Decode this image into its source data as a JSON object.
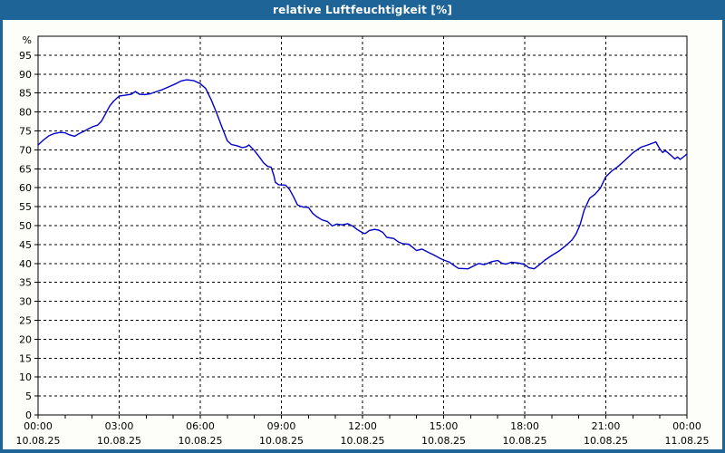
{
  "window": {
    "title": "relative Luftfeuchtigkeit [%]"
  },
  "colors": {
    "titlebar": "#1E6496",
    "content_bg": "#FDFDF9",
    "plot_bg": "#FFFFFF",
    "grid": "#000000",
    "text": "#000000",
    "line": "#0000CC"
  },
  "chart_data": {
    "type": "line",
    "title": "relative Luftfeuchtigkeit [%]",
    "ylabel": "%",
    "unit_label": "%",
    "ylim": [
      0,
      100
    ],
    "yticks": [
      0,
      5,
      10,
      15,
      20,
      25,
      30,
      35,
      40,
      45,
      50,
      55,
      60,
      65,
      70,
      75,
      80,
      85,
      90,
      95
    ],
    "xlim_hours": [
      0,
      24
    ],
    "x_minor_tick_hours": 1,
    "grid": "dashed, horizontal every 5, vertical every 3h",
    "legend_position": "none",
    "xticks": [
      {
        "hour": 0,
        "time": "00:00",
        "date": "10.08.25"
      },
      {
        "hour": 3,
        "time": "03:00",
        "date": "10.08.25"
      },
      {
        "hour": 6,
        "time": "06:00",
        "date": "10.08.25"
      },
      {
        "hour": 9,
        "time": "09:00",
        "date": "10.08.25"
      },
      {
        "hour": 12,
        "time": "12:00",
        "date": "10.08.25"
      },
      {
        "hour": 15,
        "time": "15:00",
        "date": "10.08.25"
      },
      {
        "hour": 18,
        "time": "18:00",
        "date": "10.08.25"
      },
      {
        "hour": 21,
        "time": "21:00",
        "date": "10.08.25"
      },
      {
        "hour": 24,
        "time": "00:00",
        "date": "11.08.25"
      }
    ],
    "series": [
      {
        "name": "relative Luftfeuchtigkeit",
        "unit": "%",
        "points_hour_value": [
          [
            0.0,
            71.3
          ],
          [
            0.2,
            72.6
          ],
          [
            0.4,
            73.7
          ],
          [
            0.6,
            74.3
          ],
          [
            0.8,
            74.6
          ],
          [
            1.0,
            74.5
          ],
          [
            1.15,
            74.0
          ],
          [
            1.35,
            73.6
          ],
          [
            1.5,
            74.2
          ],
          [
            1.7,
            74.9
          ],
          [
            1.9,
            75.7
          ],
          [
            2.05,
            76.2
          ],
          [
            2.2,
            76.5
          ],
          [
            2.35,
            77.6
          ],
          [
            2.5,
            79.6
          ],
          [
            2.65,
            81.6
          ],
          [
            2.8,
            82.9
          ],
          [
            3.0,
            84.2
          ],
          [
            3.2,
            84.4
          ],
          [
            3.45,
            84.7
          ],
          [
            3.6,
            85.4
          ],
          [
            3.75,
            84.7
          ],
          [
            3.95,
            84.6
          ],
          [
            4.15,
            84.8
          ],
          [
            4.35,
            85.3
          ],
          [
            4.6,
            85.9
          ],
          [
            4.85,
            86.7
          ],
          [
            5.1,
            87.5
          ],
          [
            5.3,
            88.2
          ],
          [
            5.5,
            88.5
          ],
          [
            5.75,
            88.3
          ],
          [
            6.0,
            87.5
          ],
          [
            6.2,
            86.2
          ],
          [
            6.4,
            83.3
          ],
          [
            6.6,
            79.8
          ],
          [
            6.8,
            76.0
          ],
          [
            7.0,
            72.4
          ],
          [
            7.15,
            71.4
          ],
          [
            7.35,
            71.1
          ],
          [
            7.55,
            70.6
          ],
          [
            7.7,
            70.8
          ],
          [
            7.8,
            71.3
          ],
          [
            8.0,
            69.8
          ],
          [
            8.2,
            68.0
          ],
          [
            8.35,
            66.5
          ],
          [
            8.5,
            65.6
          ],
          [
            8.62,
            65.4
          ],
          [
            8.72,
            63.3
          ],
          [
            8.78,
            61.4
          ],
          [
            8.9,
            60.8
          ],
          [
            9.15,
            60.7
          ],
          [
            9.3,
            59.6
          ],
          [
            9.45,
            57.6
          ],
          [
            9.6,
            55.4
          ],
          [
            9.8,
            54.9
          ],
          [
            10.0,
            54.8
          ],
          [
            10.15,
            53.3
          ],
          [
            10.3,
            52.4
          ],
          [
            10.5,
            51.5
          ],
          [
            10.7,
            51.1
          ],
          [
            10.88,
            49.9
          ],
          [
            11.05,
            50.4
          ],
          [
            11.25,
            50.2
          ],
          [
            11.45,
            50.5
          ],
          [
            11.65,
            49.8
          ],
          [
            11.8,
            49.0
          ],
          [
            12.0,
            48.1
          ],
          [
            12.1,
            47.9
          ],
          [
            12.25,
            48.7
          ],
          [
            12.45,
            49.0
          ],
          [
            12.6,
            48.8
          ],
          [
            12.75,
            48.2
          ],
          [
            12.9,
            46.9
          ],
          [
            13.15,
            46.6
          ],
          [
            13.35,
            45.6
          ],
          [
            13.5,
            45.2
          ],
          [
            13.7,
            45.1
          ],
          [
            13.85,
            44.3
          ],
          [
            14.0,
            43.4
          ],
          [
            14.2,
            43.8
          ],
          [
            14.45,
            42.9
          ],
          [
            14.65,
            42.2
          ],
          [
            14.85,
            41.4
          ],
          [
            15.0,
            40.9
          ],
          [
            15.2,
            40.4
          ],
          [
            15.4,
            39.4
          ],
          [
            15.55,
            38.7
          ],
          [
            15.9,
            38.6
          ],
          [
            16.1,
            39.3
          ],
          [
            16.3,
            40.0
          ],
          [
            16.5,
            39.7
          ],
          [
            16.8,
            40.5
          ],
          [
            17.0,
            40.8
          ],
          [
            17.15,
            40.1
          ],
          [
            17.3,
            39.8
          ],
          [
            17.5,
            40.3
          ],
          [
            17.8,
            40.1
          ],
          [
            18.0,
            39.7
          ],
          [
            18.15,
            38.9
          ],
          [
            18.35,
            38.6
          ],
          [
            18.55,
            39.7
          ],
          [
            18.75,
            40.9
          ],
          [
            19.0,
            42.1
          ],
          [
            19.25,
            43.2
          ],
          [
            19.5,
            44.6
          ],
          [
            19.75,
            46.2
          ],
          [
            19.9,
            47.8
          ],
          [
            20.05,
            50.3
          ],
          [
            20.2,
            54.1
          ],
          [
            20.4,
            57.2
          ],
          [
            20.6,
            58.3
          ],
          [
            20.8,
            59.9
          ],
          [
            21.0,
            62.9
          ],
          [
            21.2,
            64.3
          ],
          [
            21.45,
            65.6
          ],
          [
            21.7,
            67.2
          ],
          [
            22.0,
            69.2
          ],
          [
            22.3,
            70.7
          ],
          [
            22.6,
            71.4
          ],
          [
            22.85,
            72.1
          ],
          [
            23.0,
            70.2
          ],
          [
            23.1,
            69.3
          ],
          [
            23.2,
            69.8
          ],
          [
            23.3,
            69.2
          ],
          [
            23.45,
            68.3
          ],
          [
            23.55,
            67.6
          ],
          [
            23.65,
            68.1
          ],
          [
            23.75,
            67.5
          ],
          [
            23.9,
            68.3
          ],
          [
            24.0,
            68.9
          ]
        ]
      }
    ]
  }
}
